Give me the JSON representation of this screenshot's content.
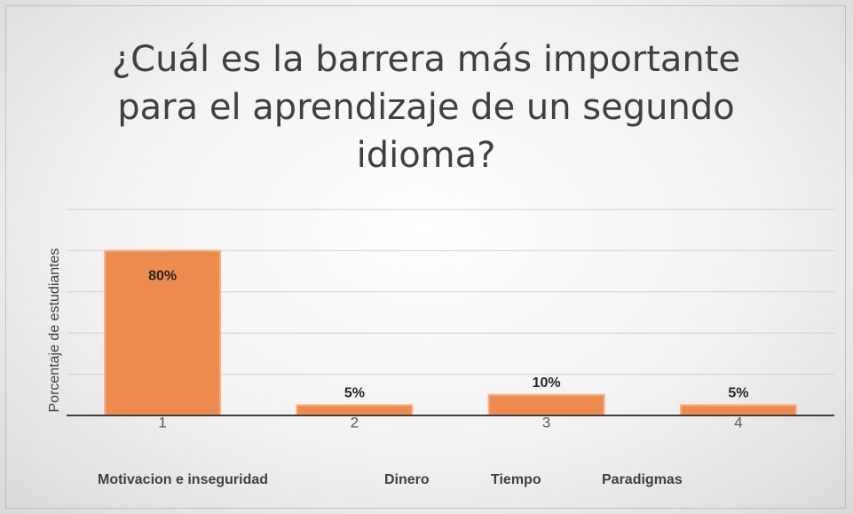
{
  "chart_data": {
    "type": "bar",
    "title": "¿Cuál es la barrera más importante para el aprendizaje de un segundo idioma?",
    "y_label": "Porcentaje de estudiantes",
    "categories": [
      "1",
      "2",
      "3",
      "4"
    ],
    "category_descriptions": [
      "Motivacion e inseguridad",
      "Dinero",
      "Tiempo",
      "Paradigmas"
    ],
    "values": [
      80,
      5,
      10,
      5
    ],
    "value_labels": [
      "80%",
      "5%",
      "10%",
      "5%"
    ],
    "color": "#ed8b4f",
    "ylim": [
      0,
      100
    ],
    "yticks": [
      0,
      20,
      40,
      60,
      80,
      100
    ],
    "grid": true
  }
}
